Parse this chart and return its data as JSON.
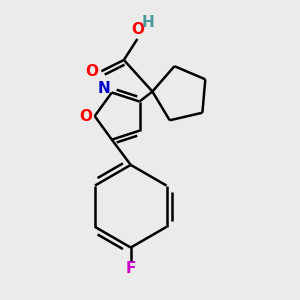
{
  "background_color": "#ebebeb",
  "atom_colors": {
    "C": "#000000",
    "H": "#4a9a9a",
    "O": "#ff0000",
    "N": "#0000cc",
    "F": "#cc00cc"
  },
  "figsize": [
    3.0,
    3.0
  ],
  "dpi": 100,
  "lw": 1.8
}
